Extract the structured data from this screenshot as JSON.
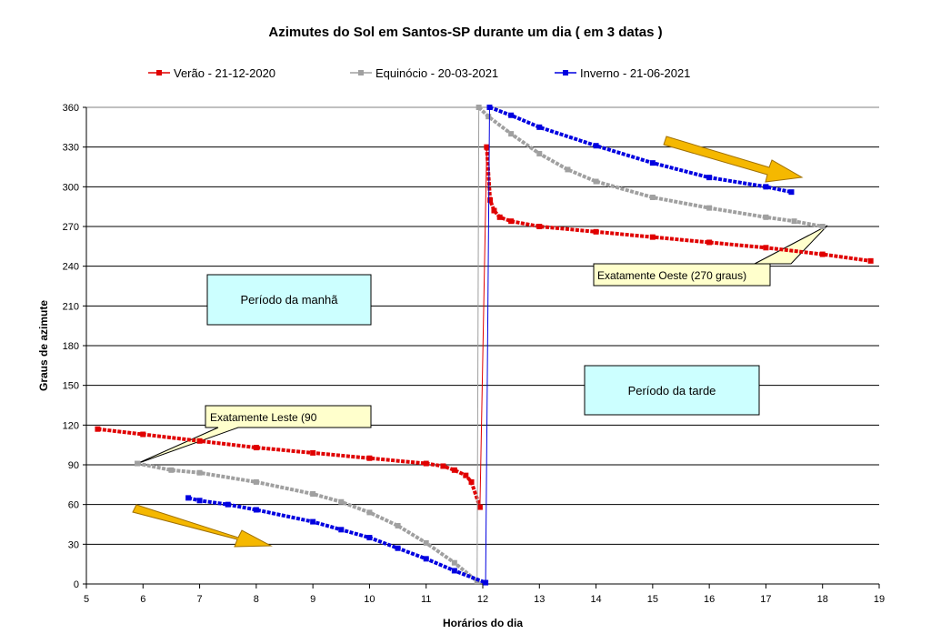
{
  "chart_data": {
    "type": "line",
    "title": "Azimutes do Sol em Santos-SP durante um dia ( em 3 datas )",
    "xlabel": "Horários do dia",
    "ylabel": "Graus de azimute",
    "xlim": [
      5,
      19
    ],
    "ylim": [
      0,
      360
    ],
    "xticks": [
      5,
      6,
      7,
      8,
      9,
      10,
      11,
      12,
      13,
      14,
      15,
      16,
      17,
      18,
      19
    ],
    "yticks": [
      0,
      30,
      60,
      90,
      120,
      150,
      180,
      210,
      240,
      270,
      300,
      330,
      360
    ],
    "grid": true,
    "legend_position": "top",
    "series": [
      {
        "name": "Verão - 21-12-2020",
        "color": "#e00000",
        "segments": [
          [
            [
              5.2,
              117
            ],
            [
              6,
              113
            ],
            [
              7,
              108
            ],
            [
              8,
              103
            ],
            [
              9,
              99
            ],
            [
              10,
              95
            ],
            [
              11,
              91
            ],
            [
              11.3,
              89
            ],
            [
              11.5,
              86
            ],
            [
              11.7,
              82
            ],
            [
              11.8,
              77
            ],
            [
              11.95,
              58
            ]
          ],
          [
            [
              12.07,
              330
            ],
            [
              12.13,
              290
            ],
            [
              12.2,
              282
            ],
            [
              12.3,
              277
            ],
            [
              12.5,
              274
            ],
            [
              13,
              270
            ],
            [
              14,
              266
            ],
            [
              15,
              262
            ],
            [
              16,
              258
            ],
            [
              17,
              254
            ],
            [
              18,
              249
            ],
            [
              18.85,
              244
            ]
          ]
        ],
        "jump": [
          [
            11.95,
            58
          ],
          [
            12.07,
            330
          ]
        ]
      },
      {
        "name": "Equinócio - 20-03-2021",
        "color": "#a0a0a0",
        "segments": [
          [
            [
              5.9,
              91
            ],
            [
              6.5,
              86
            ],
            [
              7,
              84
            ],
            [
              8,
              77
            ],
            [
              9,
              68
            ],
            [
              9.5,
              62
            ],
            [
              10,
              54
            ],
            [
              10.5,
              44
            ],
            [
              11,
              31
            ],
            [
              11.5,
              16
            ],
            [
              11.9,
              2
            ]
          ],
          [
            [
              11.93,
              360
            ],
            [
              12.1,
              353
            ],
            [
              12.5,
              340
            ],
            [
              13,
              325
            ],
            [
              13.5,
              313
            ],
            [
              14,
              304
            ],
            [
              15,
              292
            ],
            [
              16,
              284
            ],
            [
              17,
              277
            ],
            [
              17.5,
              274
            ],
            [
              18,
              270
            ]
          ]
        ],
        "jump": [
          [
            11.9,
            2
          ],
          [
            11.93,
            360
          ]
        ]
      },
      {
        "name": "Inverno - 21-06-2021",
        "color": "#0000e0",
        "segments": [
          [
            [
              6.8,
              65
            ],
            [
              7,
              63
            ],
            [
              7.5,
              60
            ],
            [
              8,
              56
            ],
            [
              9,
              47
            ],
            [
              9.5,
              41
            ],
            [
              10,
              35
            ],
            [
              10.5,
              27
            ],
            [
              11,
              19
            ],
            [
              11.5,
              10
            ],
            [
              12.05,
              1
            ]
          ],
          [
            [
              12.12,
              360
            ],
            [
              12.5,
              354
            ],
            [
              13,
              345
            ],
            [
              14,
              331
            ],
            [
              15,
              318
            ],
            [
              16,
              307
            ],
            [
              17,
              300
            ],
            [
              17.45,
              296
            ]
          ]
        ],
        "jump": [
          [
            12.05,
            1
          ],
          [
            12.12,
            360
          ]
        ]
      }
    ],
    "annotations": {
      "morning": "Período da manhã",
      "afternoon": "Período da tarde",
      "east": "Exatamente Leste (90",
      "west": "Exatamente Oeste (270 graus)"
    }
  }
}
